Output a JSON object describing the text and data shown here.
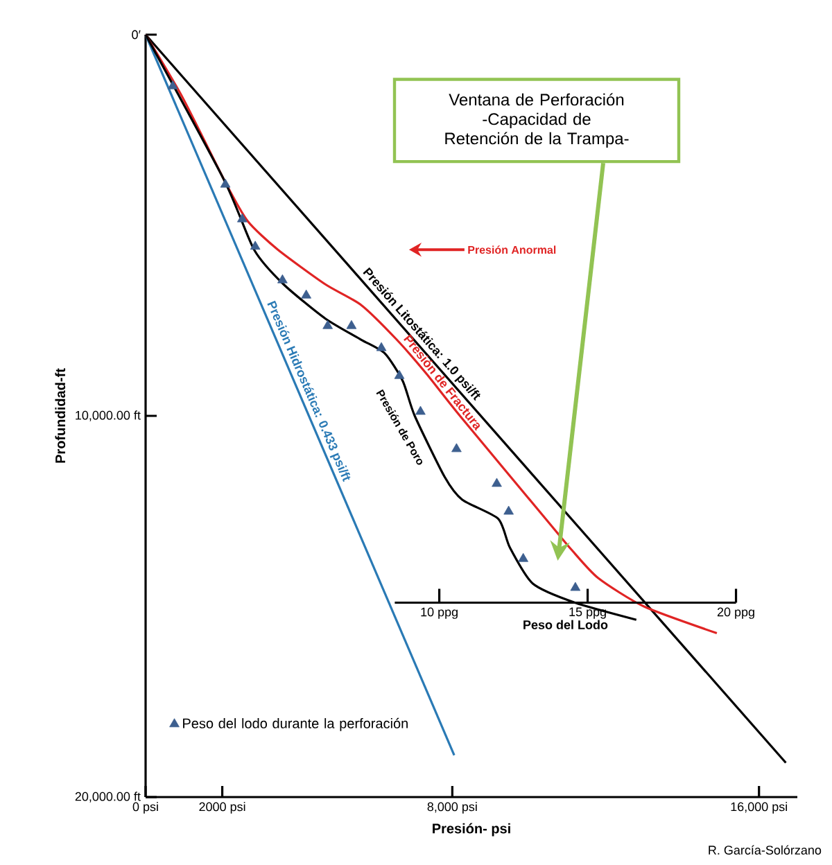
{
  "chart_data": {
    "type": "line",
    "xlabel": "Presión- psi",
    "ylabel": "Profundidad-ft",
    "xlim": [
      0,
      17000
    ],
    "ylim": [
      20000,
      0
    ],
    "xticks": [
      {
        "value": 0,
        "label": "0 psi"
      },
      {
        "value": 2000,
        "label": "2000 psi"
      },
      {
        "value": 8000,
        "label": "8,000 psi"
      },
      {
        "value": 16000,
        "label": "16,000 psi"
      }
    ],
    "yticks": [
      {
        "value": 0,
        "label": "0′"
      },
      {
        "value": 10000,
        "label": "10,000.00 ft"
      },
      {
        "value": 20000,
        "label": "20,000.00 ft"
      }
    ],
    "x2label": "Peso del Lodo",
    "x2lim": [
      8.5,
      20
    ],
    "x2ticks": [
      {
        "value": 10,
        "label": "10 ppg"
      },
      {
        "value": 15,
        "label": "15 ppg"
      },
      {
        "value": 20,
        "label": "20 ppg"
      }
    ],
    "legend": "bottom left",
    "series": [
      {
        "name": "Presión Litostática: 1.0 psi/ft",
        "color": "#000000",
        "x": [
          0,
          16700
        ],
        "values": [
          0,
          19100
        ]
      },
      {
        "name": "Presión Hidrostática: 0.433 psi/ft",
        "color": "#2a7ab5",
        "x": [
          0,
          8050
        ],
        "values": [
          0,
          18900
        ]
      },
      {
        "name": "Presión de Fractura",
        "color": "#e02424",
        "x": [
          0,
          960,
          2110,
          2670,
          3450,
          4690,
          5620,
          6550,
          7330,
          8200,
          10600,
          11100,
          11800,
          13000,
          14900
        ],
        "values": [
          0,
          1640,
          3930,
          4900,
          5640,
          6550,
          7090,
          8000,
          8900,
          10000,
          12900,
          13500,
          14250,
          15000,
          15700
        ]
      },
      {
        "name": "Presión de Poro",
        "color": "#000000",
        "x": [
          0,
          2050,
          2830,
          3600,
          4690,
          5620,
          6240,
          6710,
          7020,
          7800,
          8260,
          9200,
          9500,
          10100,
          11200,
          12800
        ],
        "values": [
          0,
          3820,
          5640,
          6550,
          7450,
          8000,
          8360,
          9090,
          10000,
          11600,
          12200,
          12700,
          13450,
          14400,
          14900,
          15350
        ]
      },
      {
        "name": "Peso del lodo durante la perforación",
        "type": "scatter",
        "marker": "triangle",
        "color": "#3d5f8f",
        "x": [
          710,
          2080,
          2520,
          2860,
          3570,
          4190,
          4750,
          5370,
          6150,
          6620,
          7170,
          8110,
          9160,
          9470,
          9850,
          11210
        ],
        "values": [
          1350,
          3930,
          4840,
          5560,
          6440,
          6840,
          7640,
          7640,
          8220,
          8950,
          9890,
          10870,
          11780,
          12510,
          13750,
          14510
        ]
      }
    ],
    "annotations": [
      "Ventana de Perforación -Capacidad de Retención de la Trampa-",
      "Presión Anormal",
      "R. García-Solórzano"
    ]
  }
}
